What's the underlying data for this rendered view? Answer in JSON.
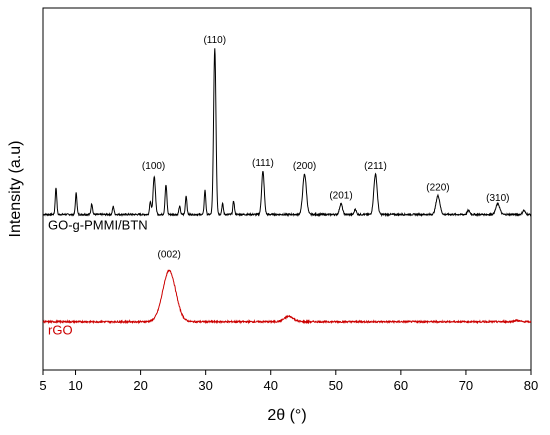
{
  "chart_data": {
    "type": "line",
    "title": "",
    "xlabel": "2θ (°)",
    "ylabel": "Intensity (a.u)",
    "xlim": [
      5,
      80
    ],
    "xticks": [
      5,
      10,
      20,
      30,
      40,
      50,
      60,
      70,
      80
    ],
    "yticks_shown": false,
    "grid": false,
    "series": [
      {
        "name": "GO-g-PMMI/BTN",
        "color": "#000000",
        "baseline": 0.58,
        "peaks": [
          {
            "x": 7.0,
            "h": 0.1,
            "w": 0.12
          },
          {
            "x": 10.1,
            "h": 0.08,
            "w": 0.12
          },
          {
            "x": 12.5,
            "h": 0.04,
            "w": 0.12
          },
          {
            "x": 15.8,
            "h": 0.03,
            "w": 0.12
          },
          {
            "x": 21.5,
            "h": 0.05,
            "w": 0.12
          },
          {
            "x": 22.1,
            "h": 0.14,
            "w": 0.18
          },
          {
            "x": 23.9,
            "h": 0.11,
            "w": 0.14
          },
          {
            "x": 26.0,
            "h": 0.03,
            "w": 0.12
          },
          {
            "x": 27.0,
            "h": 0.07,
            "w": 0.12
          },
          {
            "x": 29.9,
            "h": 0.09,
            "w": 0.12
          },
          {
            "x": 31.4,
            "h": 0.62,
            "w": 0.18
          },
          {
            "x": 32.6,
            "h": 0.04,
            "w": 0.12
          },
          {
            "x": 34.3,
            "h": 0.05,
            "w": 0.12
          },
          {
            "x": 38.8,
            "h": 0.16,
            "w": 0.2
          },
          {
            "x": 45.2,
            "h": 0.15,
            "w": 0.28
          },
          {
            "x": 50.8,
            "h": 0.04,
            "w": 0.22
          },
          {
            "x": 53.0,
            "h": 0.02,
            "w": 0.15
          },
          {
            "x": 56.1,
            "h": 0.15,
            "w": 0.26
          },
          {
            "x": 65.7,
            "h": 0.07,
            "w": 0.3
          },
          {
            "x": 70.4,
            "h": 0.015,
            "w": 0.2
          },
          {
            "x": 74.9,
            "h": 0.04,
            "w": 0.3
          },
          {
            "x": 78.9,
            "h": 0.015,
            "w": 0.2
          }
        ],
        "peak_labels": [
          {
            "text": "(110)",
            "x": 31.4,
            "y": 1.22
          },
          {
            "text": "(100)",
            "x": 22.0,
            "y": 0.75
          },
          {
            "text": "(111)",
            "x": 38.8,
            "y": 0.76
          },
          {
            "text": "(200)",
            "x": 45.2,
            "y": 0.75
          },
          {
            "text": "(201)",
            "x": 50.8,
            "y": 0.64
          },
          {
            "text": "(211)",
            "x": 56.1,
            "y": 0.75
          },
          {
            "text": "(220)",
            "x": 65.7,
            "y": 0.67
          },
          {
            "text": "(310)",
            "x": 74.9,
            "y": 0.63
          }
        ]
      },
      {
        "name": "rGO",
        "color": "#cc0000",
        "baseline": 0.18,
        "peaks": [
          {
            "x": 24.4,
            "h": 0.19,
            "w": 1.0
          },
          {
            "x": 42.8,
            "h": 0.02,
            "w": 0.7
          },
          {
            "x": 77.8,
            "h": 0.005,
            "w": 0.4
          }
        ],
        "peak_labels": [
          {
            "text": "(002)",
            "x": 24.4,
            "y": 0.42
          }
        ]
      }
    ]
  }
}
